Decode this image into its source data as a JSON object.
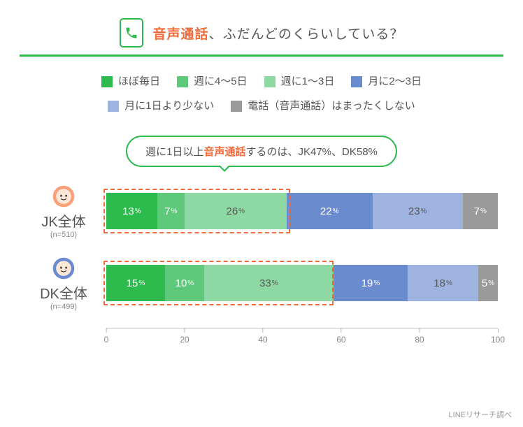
{
  "title_prefix": "音声通話",
  "title_suffix": "、ふだんどのくらいしている？",
  "accent_color": "#f26a3a",
  "brand_green": "#2dbb4e",
  "legend": [
    {
      "label": "ほぼ毎日",
      "color": "#2dbb4e"
    },
    {
      "label": "週に4～5日",
      "color": "#5ec97a"
    },
    {
      "label": "週に1～3日",
      "color": "#8ed9a3"
    },
    {
      "label": "月に2～3日",
      "color": "#6b8bcf"
    },
    {
      "label": "月に1日より少ない",
      "color": "#9fb3e0"
    },
    {
      "label": "電話（音声通話）はまったくしない",
      "color": "#9a9a9a"
    }
  ],
  "callout_pre": "週に1日以上",
  "callout_accent": "音声通話",
  "callout_post": "するのは、JK47%、DK58%",
  "rows": [
    {
      "name": "JK全体",
      "n": "(n=510)",
      "avatar_main": "#f9a07a",
      "highlight_sum": 47,
      "values": [
        13,
        7,
        26,
        22,
        23,
        7
      ],
      "widths": [
        13,
        7,
        26,
        22,
        23,
        9
      ]
    },
    {
      "name": "DK全体",
      "n": "(n=499)",
      "avatar_main": "#6b8bcf",
      "highlight_sum": 58,
      "values": [
        15,
        10,
        33,
        19,
        18,
        5
      ],
      "widths": [
        15,
        10,
        33,
        19,
        18,
        5
      ]
    }
  ],
  "axis": {
    "min": 0,
    "max": 100,
    "step": 20
  },
  "source": "LINEリサーチ調べ"
}
